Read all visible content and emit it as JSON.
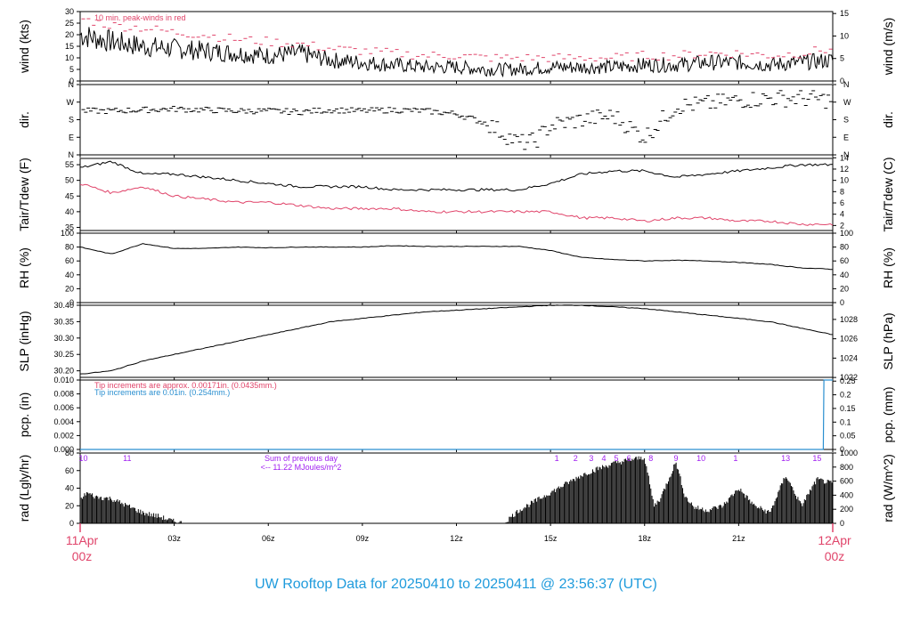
{
  "page_title": "UW Rooftop Data for 20250410  to  20250411 @ 23:56:37  (UTC)",
  "colors": {
    "black": "#000000",
    "red": "#e0446a",
    "blue": "#2a8fd0",
    "purple": "#a020f0",
    "title": "#1f9bdc"
  },
  "x_axis": {
    "ticks": [
      {
        "hour": 0,
        "label": ""
      },
      {
        "hour": 3,
        "label": "03z"
      },
      {
        "hour": 6,
        "label": "06z"
      },
      {
        "hour": 9,
        "label": "09z"
      },
      {
        "hour": 12,
        "label": "12z"
      },
      {
        "hour": 15,
        "label": "15z"
      },
      {
        "hour": 18,
        "label": "18z"
      },
      {
        "hour": 21,
        "label": "21z"
      },
      {
        "hour": 24,
        "label": ""
      }
    ],
    "start_label": [
      "11Apr",
      "00z"
    ],
    "end_label": [
      "12Apr",
      "00z"
    ],
    "range_hours": [
      0,
      24
    ]
  },
  "chart_data": [
    {
      "id": "wind",
      "type": "line",
      "ylabel_left": "wind (kts)",
      "ylabel_right": "wind (m/s)",
      "ylim": [
        0,
        30
      ],
      "yticks_left": [
        0,
        5,
        10,
        15,
        20,
        25,
        30
      ],
      "yticks_right": [
        0,
        5,
        10,
        15
      ],
      "annotation": "10 min. peak-winds in red",
      "series": [
        {
          "style": "line",
          "color": "black",
          "x": [
            0,
            1,
            2,
            3,
            4,
            5,
            6,
            7,
            8,
            9,
            10,
            11,
            12,
            13,
            14,
            15,
            16,
            17,
            18,
            19,
            20,
            21,
            22,
            23,
            24
          ],
          "y": [
            20,
            17,
            15,
            14,
            13,
            12,
            11,
            12,
            9,
            8,
            7,
            6,
            6,
            5,
            5,
            6,
            6,
            6,
            7,
            7,
            8,
            8,
            7,
            8,
            9
          ]
        },
        {
          "style": "dash",
          "color": "red",
          "x": [
            0,
            1,
            2,
            3,
            4,
            5,
            6,
            7,
            8,
            9,
            10,
            11,
            12,
            13,
            14,
            15,
            16,
            17,
            18,
            19,
            20,
            21,
            22,
            23,
            24
          ],
          "y": [
            27,
            24,
            23,
            21,
            20,
            18,
            17,
            16,
            14,
            13,
            12,
            11,
            11,
            10,
            10,
            10,
            10,
            10,
            11,
            11,
            12,
            12,
            11,
            12,
            14
          ]
        }
      ]
    },
    {
      "id": "dir",
      "type": "scatter",
      "ylabel_left": "dir.",
      "ylabel_right": "dir.",
      "ylim": [
        0,
        360
      ],
      "yticks": [
        "N",
        "E",
        "S",
        "W",
        "N"
      ],
      "series": [
        {
          "color": "black",
          "x": [
            0,
            1,
            2,
            3,
            4,
            5,
            6,
            7,
            8,
            9,
            10,
            11,
            12,
            13,
            14,
            14.5,
            15,
            16,
            17,
            18,
            19,
            20,
            21,
            22,
            23,
            24
          ],
          "y": [
            225,
            225,
            230,
            235,
            230,
            225,
            225,
            220,
            230,
            225,
            230,
            225,
            210,
            160,
            60,
            70,
            150,
            180,
            200,
            90,
            250,
            260,
            280,
            290,
            290,
            280
          ]
        }
      ]
    },
    {
      "id": "temp",
      "type": "line",
      "ylabel_left": "Tair/Tdew (F)",
      "ylabel_right": "Tair/Tdew (C)",
      "ylim": [
        34,
        57
      ],
      "yticks_left": [
        35,
        40,
        45,
        50,
        55
      ],
      "yticks_right": [
        2,
        4,
        6,
        8,
        10,
        12,
        14
      ],
      "series": [
        {
          "name": "Tair",
          "color": "black",
          "x": [
            0,
            1,
            2,
            3,
            4,
            5,
            6,
            7,
            8,
            9,
            10,
            11,
            12,
            13,
            14,
            15,
            16,
            17,
            18,
            19,
            20,
            21,
            22,
            23,
            24
          ],
          "y": [
            54,
            56,
            52,
            52,
            51,
            50,
            49,
            48,
            48,
            48,
            47,
            47,
            47,
            47,
            47,
            49,
            52,
            53,
            53,
            51,
            52,
            53,
            54,
            55,
            55
          ]
        },
        {
          "name": "Tdew",
          "color": "red",
          "x": [
            0,
            1,
            2,
            3,
            4,
            5,
            6,
            7,
            8,
            9,
            10,
            11,
            12,
            13,
            14,
            15,
            16,
            17,
            18,
            19,
            20,
            21,
            22,
            23,
            24
          ],
          "y": [
            49,
            46,
            48,
            45,
            44,
            43,
            43,
            42,
            41,
            41,
            41,
            40,
            40,
            40,
            40,
            40,
            38,
            38,
            37,
            38,
            38,
            37,
            37,
            36,
            36
          ]
        }
      ]
    },
    {
      "id": "rh",
      "type": "line",
      "ylabel_left": "RH (%)",
      "ylabel_right": "RH (%)",
      "ylim": [
        0,
        100
      ],
      "yticks_left": [
        0,
        20,
        40,
        60,
        80,
        100
      ],
      "yticks_right": [
        0,
        20,
        40,
        60,
        80,
        100
      ],
      "series": [
        {
          "color": "black",
          "x": [
            0,
            1,
            2,
            3,
            4,
            5,
            6,
            7,
            8,
            9,
            10,
            11,
            12,
            13,
            14,
            15,
            16,
            17,
            18,
            19,
            20,
            21,
            22,
            23,
            24
          ],
          "y": [
            80,
            70,
            85,
            78,
            78,
            80,
            79,
            80,
            80,
            80,
            82,
            81,
            81,
            81,
            81,
            75,
            65,
            62,
            60,
            61,
            60,
            58,
            55,
            50,
            48
          ]
        }
      ]
    },
    {
      "id": "slp",
      "type": "line",
      "ylabel_left": "SLP (inHg)",
      "ylabel_right": "SLP (hPa)",
      "ylim": [
        30.18,
        30.4
      ],
      "yticks_left": [
        30.2,
        30.25,
        30.3,
        30.35,
        30.4
      ],
      "yticks_right_hpa": [
        1022,
        1024,
        1026,
        1028
      ],
      "series": [
        {
          "color": "black",
          "x": [
            0,
            1,
            2,
            3,
            4,
            5,
            6,
            7,
            8,
            9,
            10,
            11,
            12,
            13,
            14,
            15,
            16,
            17,
            18,
            19,
            20,
            21,
            22,
            23,
            24
          ],
          "y": [
            30.19,
            30.2,
            30.23,
            30.25,
            30.27,
            30.29,
            30.31,
            30.33,
            30.35,
            30.36,
            30.37,
            30.38,
            30.385,
            30.39,
            30.395,
            30.4,
            30.4,
            30.395,
            30.39,
            30.38,
            30.37,
            30.36,
            30.35,
            30.33,
            30.31
          ]
        }
      ]
    },
    {
      "id": "pcp",
      "type": "line",
      "ylabel_left": "pcp. (in)",
      "ylabel_right": "pcp. (mm)",
      "ylim": [
        0,
        0.01
      ],
      "yticks_left": [
        "0.000",
        "0.002",
        "0.004",
        "0.006",
        "0.008",
        "0.010"
      ],
      "yticks_right": [
        "0",
        "0.05",
        "0.1",
        "0.15",
        "0.2",
        "0.25"
      ],
      "annotations": [
        {
          "text": "Tip increments are approx. 0.00171in. (0.0435mm.)",
          "color": "red"
        },
        {
          "text": "Tip increments are 0.01in. (0.254mm.)",
          "color": "blue"
        }
      ],
      "series": [
        {
          "color": "blue",
          "x": [
            0,
            23.7,
            23.72,
            24
          ],
          "y": [
            0,
            0,
            0.01,
            0.01
          ]
        }
      ]
    },
    {
      "id": "rad",
      "type": "area",
      "ylabel_left": "rad (Lgly/hr)",
      "ylabel_right": "rad (W/m^2)",
      "ylim": [
        0,
        80
      ],
      "yticks_left": [
        0,
        20,
        40,
        60,
        80
      ],
      "yticks_right": [
        0,
        200,
        400,
        600,
        800,
        1000
      ],
      "annotation": [
        "Sum of previous day",
        "<-- 11.22 MJoules/m^2"
      ],
      "hour_markers": [
        {
          "hour": 0.1,
          "label": "10"
        },
        {
          "hour": 1.5,
          "label": "11"
        },
        {
          "hour": 15.2,
          "label": "1"
        },
        {
          "hour": 15.8,
          "label": "2"
        },
        {
          "hour": 16.3,
          "label": "3"
        },
        {
          "hour": 16.7,
          "label": "4"
        },
        {
          "hour": 17.1,
          "label": "5"
        },
        {
          "hour": 17.5,
          "label": "6"
        },
        {
          "hour": 18.2,
          "label": "8"
        },
        {
          "hour": 19.0,
          "label": "9"
        },
        {
          "hour": 19.8,
          "label": "10"
        },
        {
          "hour": 20.9,
          "label": "1"
        },
        {
          "hour": 22.5,
          "label": "13"
        },
        {
          "hour": 23.5,
          "label": "15"
        }
      ],
      "series": [
        {
          "color": "black",
          "x": [
            0,
            0.2,
            0.5,
            1,
            1.5,
            2,
            2.5,
            3,
            3.3,
            13.5,
            14,
            14.5,
            15,
            15.5,
            16,
            16.5,
            17,
            17.5,
            18,
            18.3,
            18.5,
            19,
            19.3,
            19.6,
            20,
            20.5,
            21,
            21.5,
            22,
            22.5,
            23,
            23.5,
            24
          ],
          "y": [
            25,
            35,
            30,
            28,
            20,
            12,
            8,
            2,
            0,
            0,
            15,
            25,
            35,
            45,
            55,
            62,
            68,
            72,
            75,
            20,
            28,
            70,
            30,
            18,
            15,
            20,
            40,
            20,
            12,
            55,
            20,
            50,
            45
          ]
        }
      ]
    }
  ]
}
